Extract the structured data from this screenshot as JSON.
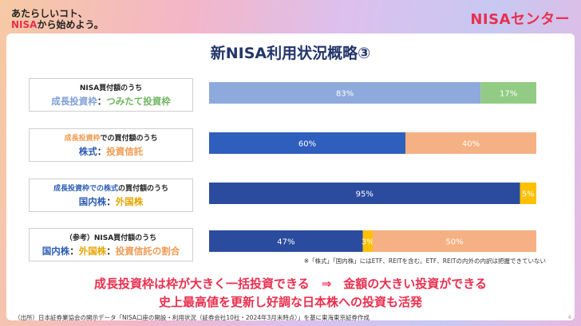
{
  "header": {
    "tagline_line1": "あたらしいコト、",
    "tagline_line2_accent": "NISA",
    "tagline_line2_rest": "から始めよう。",
    "brand": "NISAセンター"
  },
  "title": "新NISA利用状況概略③",
  "rows": [
    {
      "label_line1": [
        {
          "text": "NISA買付額のうち",
          "color": "black"
        }
      ],
      "label_line2": [
        {
          "text": "成長投資枠",
          "color": "lblue"
        },
        {
          "text": "：",
          "color": "black"
        },
        {
          "text": "つみたて投資枠",
          "color": "green"
        }
      ]
    },
    {
      "label_line1": [
        {
          "text": "成長投資枠",
          "color": "orange"
        },
        {
          "text": "での買付額のうち",
          "color": "black"
        }
      ],
      "label_line2": [
        {
          "text": "株式",
          "color": "blue"
        },
        {
          "text": "：",
          "color": "black"
        },
        {
          "text": "投資信託",
          "color": "orange"
        }
      ]
    },
    {
      "label_line1": [
        {
          "text": "成長投資枠での",
          "color": "blue"
        },
        {
          "text": "株式",
          "color": "blue"
        },
        {
          "text": "の買付額のうち",
          "color": "black"
        }
      ],
      "label_line2": [
        {
          "text": "国内株",
          "color": "blue"
        },
        {
          "text": "：",
          "color": "black"
        },
        {
          "text": "外国株",
          "color": "yellow"
        }
      ]
    },
    {
      "label_line1": [
        {
          "text": "（参考）NISA買付額のうち",
          "color": "black"
        }
      ],
      "label_line2": [
        {
          "text": "国内株",
          "color": "blue"
        },
        {
          "text": "：",
          "color": "black"
        },
        {
          "text": "外国株",
          "color": "yellow"
        },
        {
          "text": "：",
          "color": "black"
        },
        {
          "text": "投資信託の割合",
          "color": "orange"
        }
      ]
    }
  ],
  "chart_data": {
    "type": "bar",
    "orientation": "horizontal",
    "stacked": true,
    "scale_max": 100,
    "rows": [
      {
        "segments": [
          {
            "value": 83,
            "label": "83%",
            "color": "#8ea9db"
          },
          {
            "value": 17,
            "label": "17%",
            "color": "#92cc84"
          }
        ]
      },
      {
        "segments": [
          {
            "value": 60,
            "label": "60%",
            "color": "#2f5fbd"
          },
          {
            "value": 40,
            "label": "40%",
            "color": "#f5b183"
          }
        ]
      },
      {
        "segments": [
          {
            "value": 95,
            "label": "95%",
            "color": "#2b4c9e"
          },
          {
            "value": 5,
            "label": "5%",
            "color": "#ffc000"
          }
        ]
      },
      {
        "segments": [
          {
            "value": 47,
            "label": "47%",
            "color": "#2b4c9e"
          },
          {
            "value": 3,
            "label": "3%",
            "color": "#ffc000"
          },
          {
            "value": 50,
            "label": "50%",
            "color": "#f5b183"
          }
        ]
      }
    ],
    "row_scales": [
      100,
      100,
      100,
      100
    ]
  },
  "note": "※「株式」「国内株」にはETF、REITを含む。ETF、REITの内外の内訳は把握できていない",
  "conclusion_line1": "成長投資枠は枠が大きく一括投資できる　⇒　金額の大きい投資ができる",
  "conclusion_line2": "史上最高値を更新し好調な日本株への投資も活発",
  "source": "（出所）日本証券業協会の開示データ「NISA口座の開設・利用状況（証券会社10社・2024年3月末時点）」を基に東海東京証券作成",
  "page_number": "6"
}
